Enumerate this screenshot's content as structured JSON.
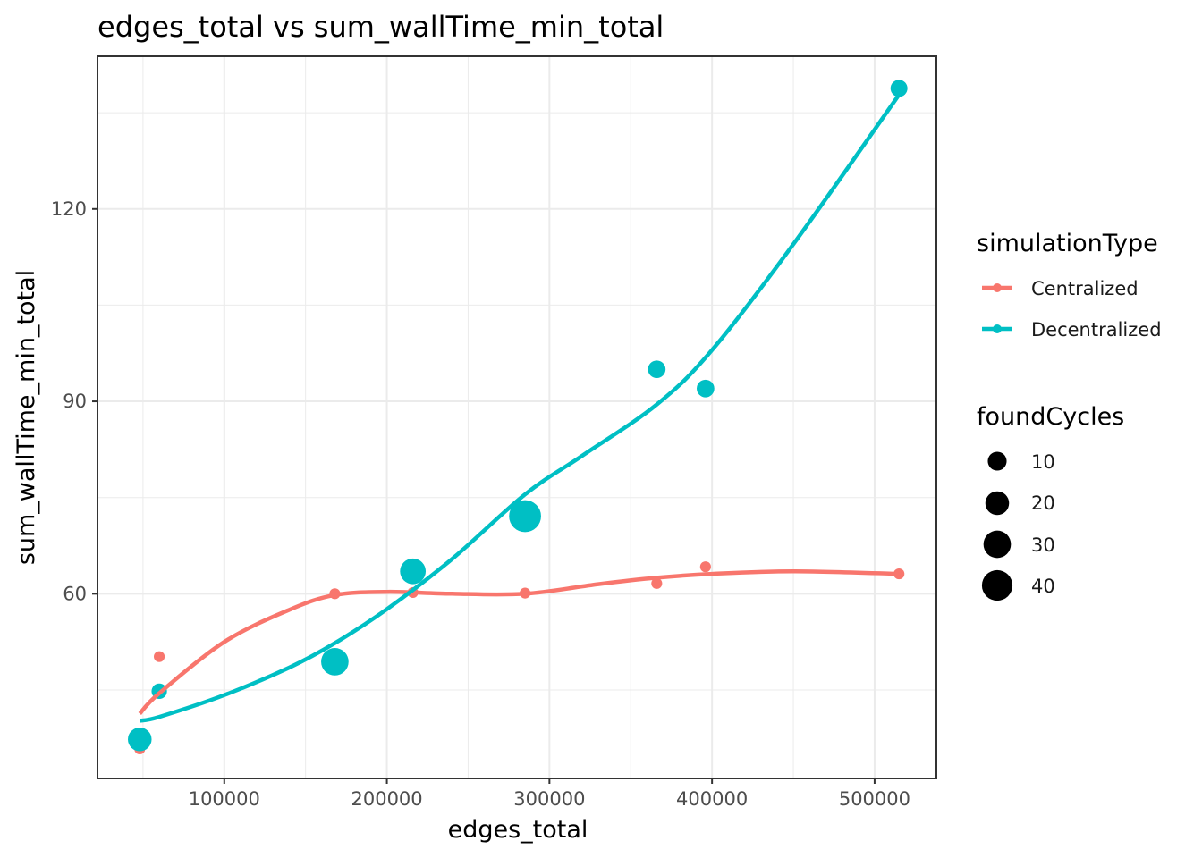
{
  "chart_data": {
    "type": "scatter",
    "title": "edges_total  vs  sum_wallTime_min_total",
    "xlabel": "edges_total",
    "ylabel": "sum_wallTime_min_total",
    "xlim": [
      22000,
      538000
    ],
    "ylim": [
      31.2,
      143.8
    ],
    "x_ticks": [
      100000,
      200000,
      300000,
      400000,
      500000
    ],
    "x_tick_labels": [
      "100000",
      "200000",
      "300000",
      "400000",
      "500000"
    ],
    "y_ticks": [
      60,
      90,
      120
    ],
    "y_tick_labels": [
      "60",
      "90",
      "120"
    ],
    "grid": true,
    "legend_position": "right",
    "series": [
      {
        "name": "Centralized",
        "color": "#f8766d",
        "points": [
          {
            "x": 48000,
            "y": 35.8,
            "foundCycles": 1
          },
          {
            "x": 60000,
            "y": 50.2,
            "foundCycles": 1
          },
          {
            "x": 168000,
            "y": 60.0,
            "foundCycles": 1
          },
          {
            "x": 216000,
            "y": 60.2,
            "foundCycles": 1
          },
          {
            "x": 285000,
            "y": 60.1,
            "foundCycles": 1
          },
          {
            "x": 366000,
            "y": 61.6,
            "foundCycles": 1
          },
          {
            "x": 396000,
            "y": 64.2,
            "foundCycles": 1
          },
          {
            "x": 515000,
            "y": 63.1,
            "foundCycles": 1
          }
        ],
        "smooth": [
          [
            48000,
            41.3
          ],
          [
            60000,
            44.5
          ],
          [
            100000,
            52.5
          ],
          [
            140000,
            57.5
          ],
          [
            168000,
            59.8
          ],
          [
            200000,
            60.3
          ],
          [
            240000,
            60.0
          ],
          [
            285000,
            60.0
          ],
          [
            330000,
            61.5
          ],
          [
            366000,
            62.5
          ],
          [
            400000,
            63.1
          ],
          [
            450000,
            63.5
          ],
          [
            515000,
            63.1
          ]
        ]
      },
      {
        "name": "Decentralized",
        "color": "#00bfc4",
        "points": [
          {
            "x": 48000,
            "y": 37.3,
            "foundCycles": 20
          },
          {
            "x": 60000,
            "y": 44.8,
            "foundCycles": 5
          },
          {
            "x": 168000,
            "y": 49.4,
            "foundCycles": 30
          },
          {
            "x": 216000,
            "y": 63.5,
            "foundCycles": 25
          },
          {
            "x": 285000,
            "y": 72.1,
            "foundCycles": 45
          },
          {
            "x": 366000,
            "y": 95.0,
            "foundCycles": 8
          },
          {
            "x": 396000,
            "y": 92.0,
            "foundCycles": 8
          },
          {
            "x": 515000,
            "y": 138.8,
            "foundCycles": 7
          }
        ],
        "smooth": [
          [
            48000,
            40.2
          ],
          [
            60000,
            40.8
          ],
          [
            100000,
            44.2
          ],
          [
            140000,
            48.5
          ],
          [
            168000,
            52.3
          ],
          [
            200000,
            57.6
          ],
          [
            240000,
            65.4
          ],
          [
            285000,
            75.5
          ],
          [
            320000,
            81.5
          ],
          [
            366000,
            89.5
          ],
          [
            400000,
            98.0
          ],
          [
            450000,
            114.5
          ],
          [
            515000,
            137.8
          ]
        ]
      }
    ],
    "size_legend": {
      "title": "foundCycles",
      "values": [
        10,
        20,
        30,
        40
      ],
      "labels": [
        "10",
        "20",
        "30",
        "40"
      ]
    },
    "color_legend": {
      "title": "simulationType",
      "labels": [
        "Centralized",
        "Decentralized"
      ]
    }
  }
}
